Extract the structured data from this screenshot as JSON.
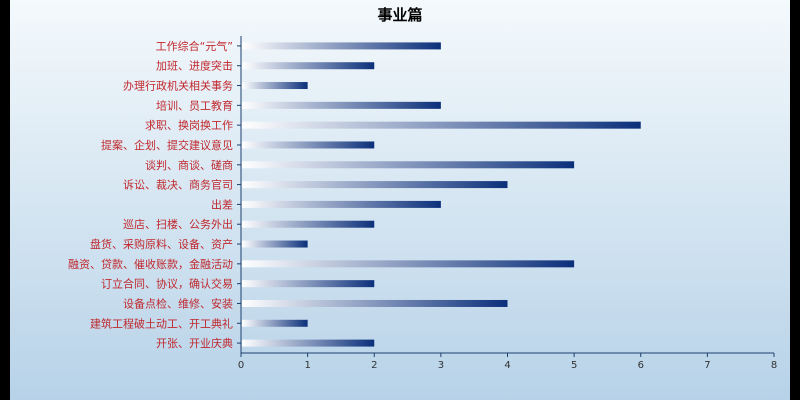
{
  "chart_data": {
    "type": "bar",
    "orientation": "horizontal",
    "title": "事业篇",
    "xlabel": "",
    "ylabel": "",
    "xlim": [
      0,
      8
    ],
    "xticks": [
      0,
      1,
      2,
      3,
      4,
      5,
      6,
      7,
      8
    ],
    "grid": false,
    "legend": "none",
    "bar_color_start": "#ffffff",
    "bar_color_end": "#0b2f7a",
    "label_color": "#c0282d",
    "categories": [
      "工作综合“元气”",
      "加班、进度突击",
      "办理行政机关相关事务",
      "培训、员工教育",
      "求职、换岗换工作",
      "提案、企划、提交建议意见",
      "谈判、商谈、磋商",
      "诉讼、裁决、商务官司",
      "出差",
      "巡店、扫楼、公务外出",
      "盘货、采购原料、设备、资产",
      "融资、贷款、催收账款，金融活动",
      "订立合同、协议，确认交易",
      "设备点检、维修、安装",
      "建筑工程破土动工、开工典礼",
      "开张、开业庆典"
    ],
    "values": [
      3,
      2,
      1,
      3,
      6,
      2,
      5,
      4,
      3,
      2,
      1,
      5,
      2,
      4,
      1,
      2
    ]
  }
}
